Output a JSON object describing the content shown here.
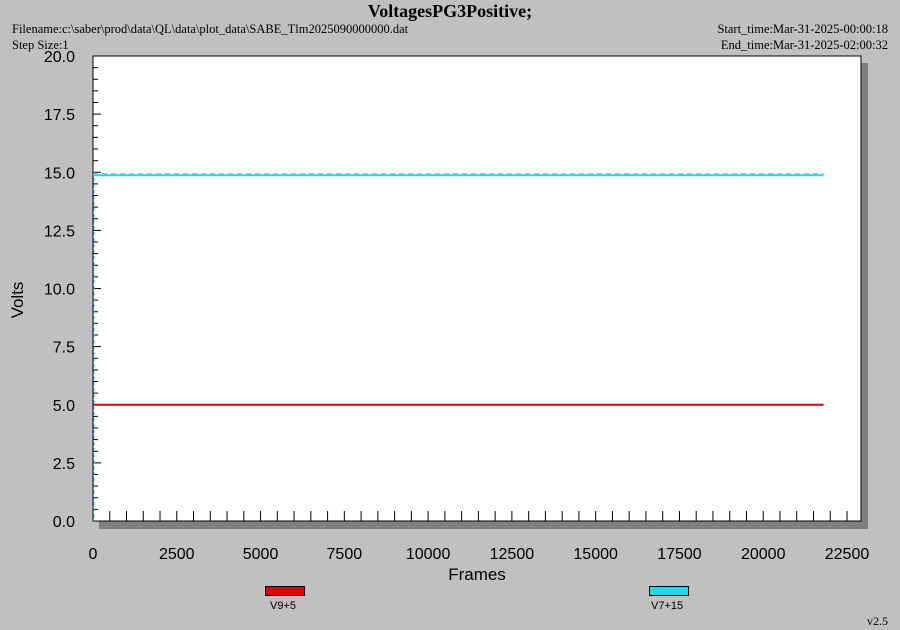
{
  "header": {
    "title": "VoltagesPG3Positive;",
    "filename": "Filename:c:\\saber\\prod\\data\\QL\\data\\plot_data\\SABE_Tlm2025090000000.dat",
    "step_size": "Step Size:1",
    "start_time": "Start_time:Mar-31-2025-00:00:18",
    "end_time": "End_time:Mar-31-2025-02:00:32"
  },
  "version": "v2.5",
  "colors": {
    "background": "#c0c0c0",
    "plot_bg": "#ffffff",
    "shadow": "#7f7f7f"
  },
  "chart_data": {
    "type": "line",
    "title": "VoltagesPG3Positive;",
    "xlabel": "Frames",
    "ylabel": "Volts",
    "xlim": [
      0,
      23000
    ],
    "ylim": [
      0,
      20
    ],
    "x_ticks": [
      "0",
      "2500",
      "5000",
      "7500",
      "10000",
      "12500",
      "15000",
      "17500",
      "20000",
      "22500"
    ],
    "y_ticks": [
      "0.0",
      "2.5",
      "5.0",
      "7.5",
      "10.0",
      "12.5",
      "15.0",
      "17.5",
      "20.0"
    ],
    "x_tick_values": [
      0,
      2500,
      5000,
      7500,
      10000,
      12500,
      15000,
      17500,
      20000,
      22500
    ],
    "y_tick_values": [
      0,
      2.5,
      5,
      7.5,
      10,
      12.5,
      15,
      17.5,
      20
    ],
    "grid": false,
    "legend_position": "bottom",
    "series": [
      {
        "name": "V9+5",
        "color": "#e00000",
        "x": [
          0,
          21800
        ],
        "values": [
          5.0,
          5.0
        ]
      },
      {
        "name": "V7+15",
        "color": "#22d8e8",
        "x": [
          0,
          21800
        ],
        "values": [
          14.87,
          14.87
        ]
      }
    ]
  }
}
